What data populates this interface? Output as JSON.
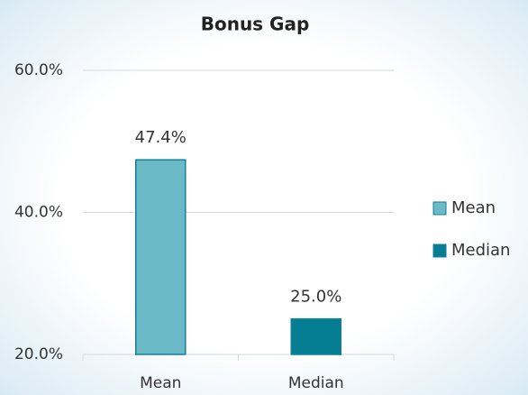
{
  "chart_data": {
    "type": "bar",
    "title": "Bonus Gap",
    "categories": [
      "Mean",
      "Median"
    ],
    "values": [
      47.4,
      25.0
    ],
    "value_labels": [
      "47.4%",
      "25.0%"
    ],
    "colors": [
      "#6cb9c7",
      "#057d93"
    ],
    "ylim": [
      20,
      60
    ],
    "yticks": [
      {
        "value": 20,
        "label": "20.0%"
      },
      {
        "value": 40,
        "label": "40.0%"
      },
      {
        "value": 60,
        "label": "60.0%"
      }
    ],
    "grid": true,
    "legend": "right"
  }
}
